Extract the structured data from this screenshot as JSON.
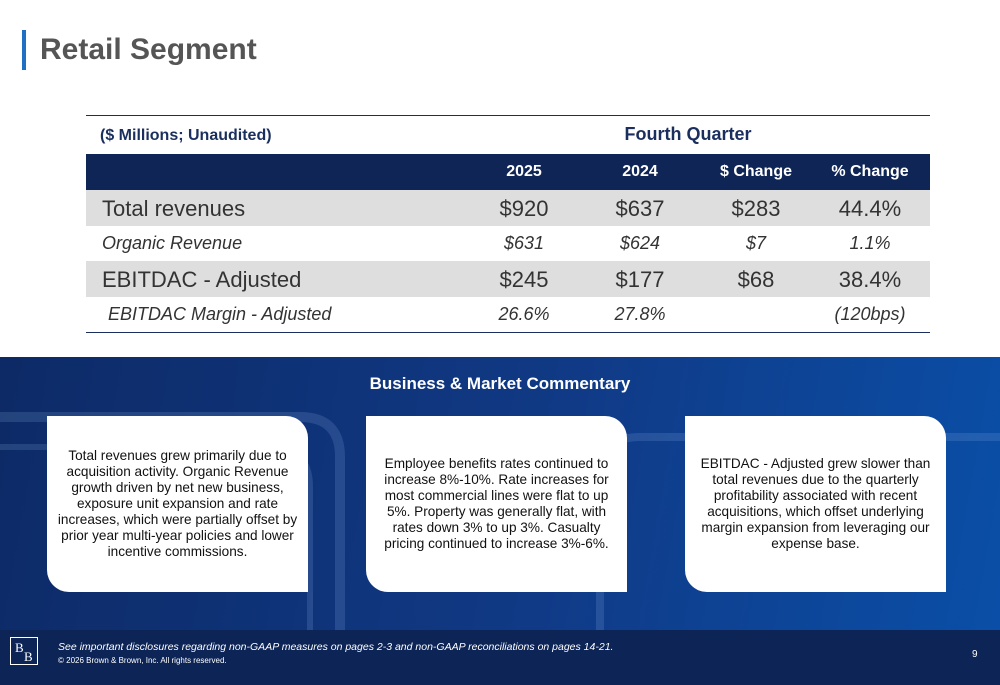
{
  "header": {
    "title": "Retail Segment"
  },
  "table": {
    "caption": "($ Millions; Unaudited)",
    "group": "Fourth Quarter",
    "columns": [
      "2025",
      "2024",
      "$ Change",
      "% Change"
    ],
    "rows": [
      {
        "label": "Total revenues",
        "cells": [
          "$920",
          "$637",
          "$283",
          "44.4%"
        ]
      },
      {
        "label": "Organic Revenue",
        "cells": [
          "$631",
          "$624",
          "$7",
          "1.1%"
        ]
      },
      {
        "label": "EBITDAC - Adjusted",
        "cells": [
          "$245",
          "$177",
          "$68",
          "38.4%"
        ]
      },
      {
        "label": "EBITDAC Margin - Adjusted",
        "cells": [
          "26.6%",
          "27.8%",
          null,
          "(120bps)"
        ]
      }
    ]
  },
  "commentary": {
    "title": "Business & Market Commentary",
    "cards": [
      "Total revenues grew primarily due to acquisition activity. Organic Revenue growth driven by net new business, exposure unit expansion and rate increases, which were partially offset by prior year multi-year policies and lower incentive commissions.",
      "Employee benefits rates continued to increase 8%-10%. Rate increases for most commercial lines were flat to up 5%. Property was generally flat, with rates down 3% to up 3%. Casualty pricing continued to increase 3%-6%.",
      "EBITDAC - Adjusted grew slower than total revenues due to the quarterly profitability associated with recent acquisitions, which offset underlying margin expansion from leveraging our expense base."
    ]
  },
  "footer": {
    "logo": [
      "B",
      "B"
    ],
    "disclosure": "See important disclosures regarding non-GAAP measures on pages 2-3 and non-GAAP reconciliations on pages 14-21.",
    "copyright": "© 2026 Brown & Brown, Inc. All rights reserved.",
    "page": "9"
  }
}
